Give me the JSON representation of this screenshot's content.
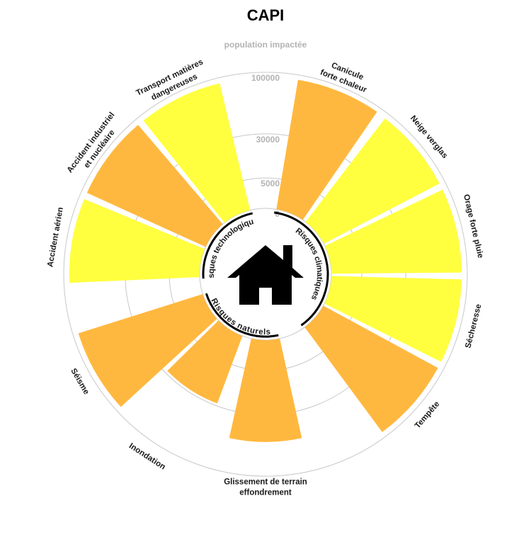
{
  "chart_data": {
    "type": "bar",
    "subtype": "circular",
    "title": "CAPI",
    "radial_axis_label": "population impactée",
    "radial_ticks": [
      0,
      5000,
      30000,
      100000
    ],
    "scale": "sqrt",
    "rmax": 100000,
    "grid": true,
    "colors": {
      "naturel": "#FFB83F",
      "climatique": "#FFFF40",
      "technologique_orange": "#FFB83F",
      "technologique_yellow": "#FFFF40"
    },
    "categories": [
      "Canicule\nforte chaleur",
      "Neige verglas",
      "Orage forte pluie",
      "Sécheresse",
      "Tempête",
      "Glissement de terrain\neffondrement",
      "Inondation",
      "Séisme",
      "Accident aérien",
      "Accident industriel\net nucléaire",
      "Transport matières\ndangereuses"
    ],
    "values": [
      93000,
      92000,
      92000,
      92000,
      92000,
      56000,
      28000,
      92000,
      92000,
      92000,
      92000
    ],
    "bar_colors": [
      "#FFB83F",
      "#FFFF40",
      "#FFFF40",
      "#FFFF40",
      "#FFB83F",
      "#FFB83F",
      "#FFB83F",
      "#FFB83F",
      "#FFFF40",
      "#FFB83F",
      "#FFFF40"
    ],
    "groups": [
      {
        "name": "Risques climatiques",
        "categories": [
          "Canicule\nforte chaleur",
          "Neige verglas",
          "Orage forte pluie",
          "Sécheresse",
          "Tempête"
        ]
      },
      {
        "name": "Risques naturels",
        "categories": [
          "Glissement de terrain\neffondrement",
          "Inondation",
          "Séisme"
        ]
      },
      {
        "name": "Risques technologiques",
        "categories": [
          "Accident aérien",
          "Accident industriel\net nucléaire",
          "Transport matières\ndangereuses"
        ]
      }
    ],
    "center_icon": "house-icon"
  }
}
